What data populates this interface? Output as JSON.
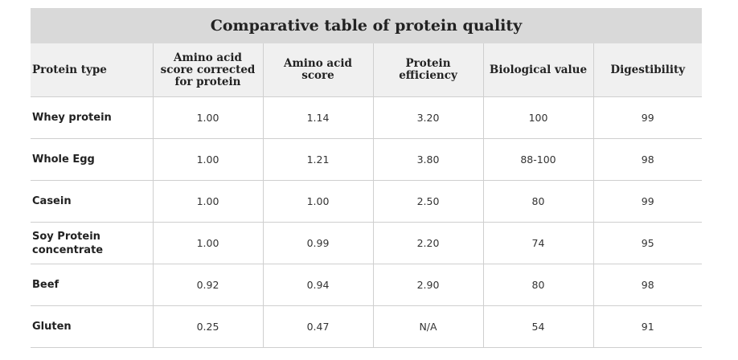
{
  "table": {
    "title": "Comparative table of protein quality",
    "headers": [
      "Protein type",
      "Amino acid score corrected for protein",
      "Amino acid score",
      "Protein efficiency",
      "Biological value",
      "Digestibility"
    ],
    "rows": [
      [
        "Whey protein",
        "1.00",
        "1.14",
        "3.20",
        "100",
        "99"
      ],
      [
        "Whole Egg",
        "1.00",
        "1.21",
        "3.80",
        "88-100",
        "98"
      ],
      [
        "Casein",
        "1.00",
        "1.00",
        "2.50",
        "80",
        "99"
      ],
      [
        "Soy Protein concentrate",
        "1.00",
        "0.99",
        "2.20",
        "74",
        "95"
      ],
      [
        "Beef",
        "0.92",
        "0.94",
        "2.90",
        "80",
        "98"
      ],
      [
        "Gluten",
        "0.25",
        "0.47",
        "N/A",
        "54",
        "91"
      ]
    ]
  },
  "colors": {
    "title_bg": "#d9d9d9",
    "header_bg": "#f0f0f0",
    "grid": "#cfcfcf"
  }
}
